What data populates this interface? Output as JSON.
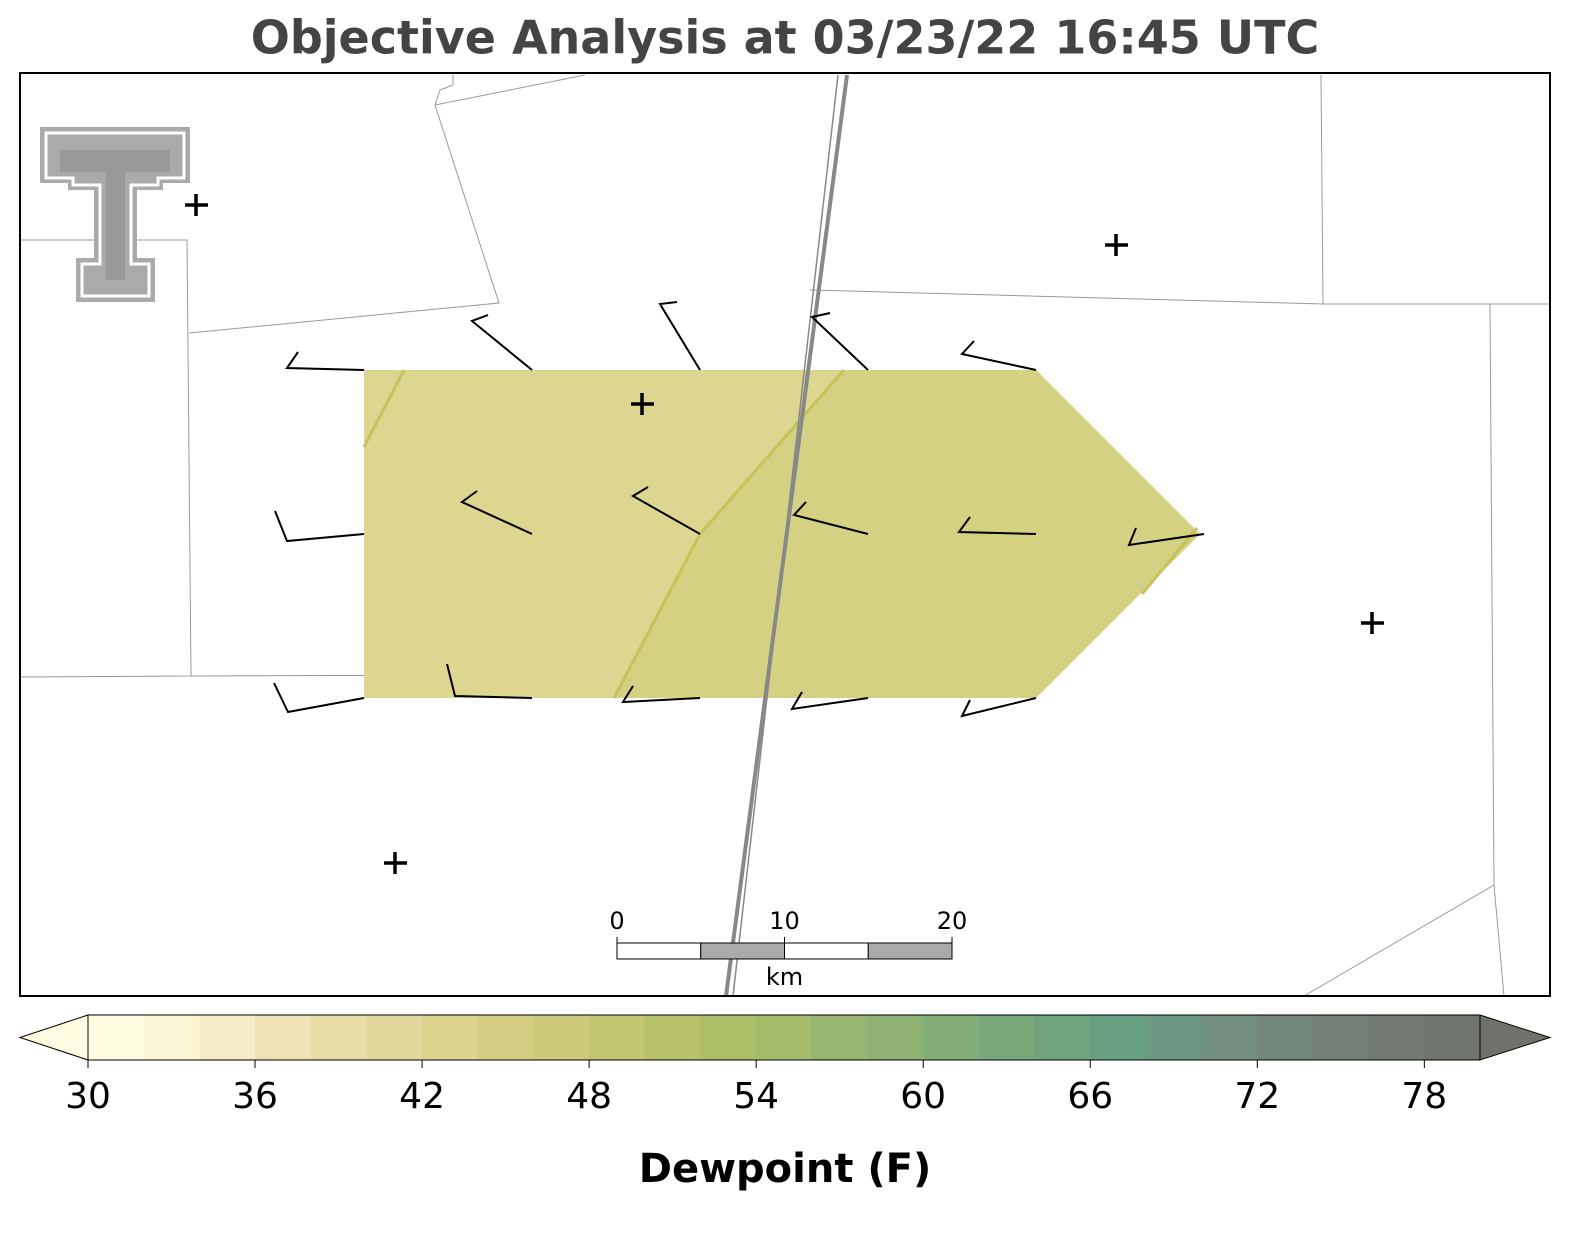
{
  "chart_data": {
    "type": "colorbar",
    "title": "Objective Analysis at 03/23/22 16:45 UTC",
    "colorbar_label": "Dewpoint (F)",
    "xlim": [
      30,
      80
    ],
    "xticks": [
      30,
      36,
      42,
      48,
      54,
      60,
      66,
      72,
      78
    ],
    "colors": [
      "#fefbe0",
      "#fbf5d3",
      "#f5edc5",
      "#efe4b5",
      "#e9dea8",
      "#e3d89b",
      "#dcd48f",
      "#d4ce84",
      "#ccc97a",
      "#c4c571",
      "#b8c26b",
      "#adbf69",
      "#a3bb6b",
      "#97b670",
      "#8db274",
      "#82ae77",
      "#79a87a",
      "#6fa47d",
      "#66a080",
      "#6b9882",
      "#728f7f",
      "#74877b",
      "#747f76",
      "#737a72",
      "#6f756d"
    ],
    "under_color": "#fefbe0",
    "over_color": "#6e726b",
    "scale_bar": {
      "xlim": [
        0,
        20
      ],
      "xticks": [
        0,
        10,
        20
      ],
      "unit": "km",
      "segment": 5
    }
  }
}
